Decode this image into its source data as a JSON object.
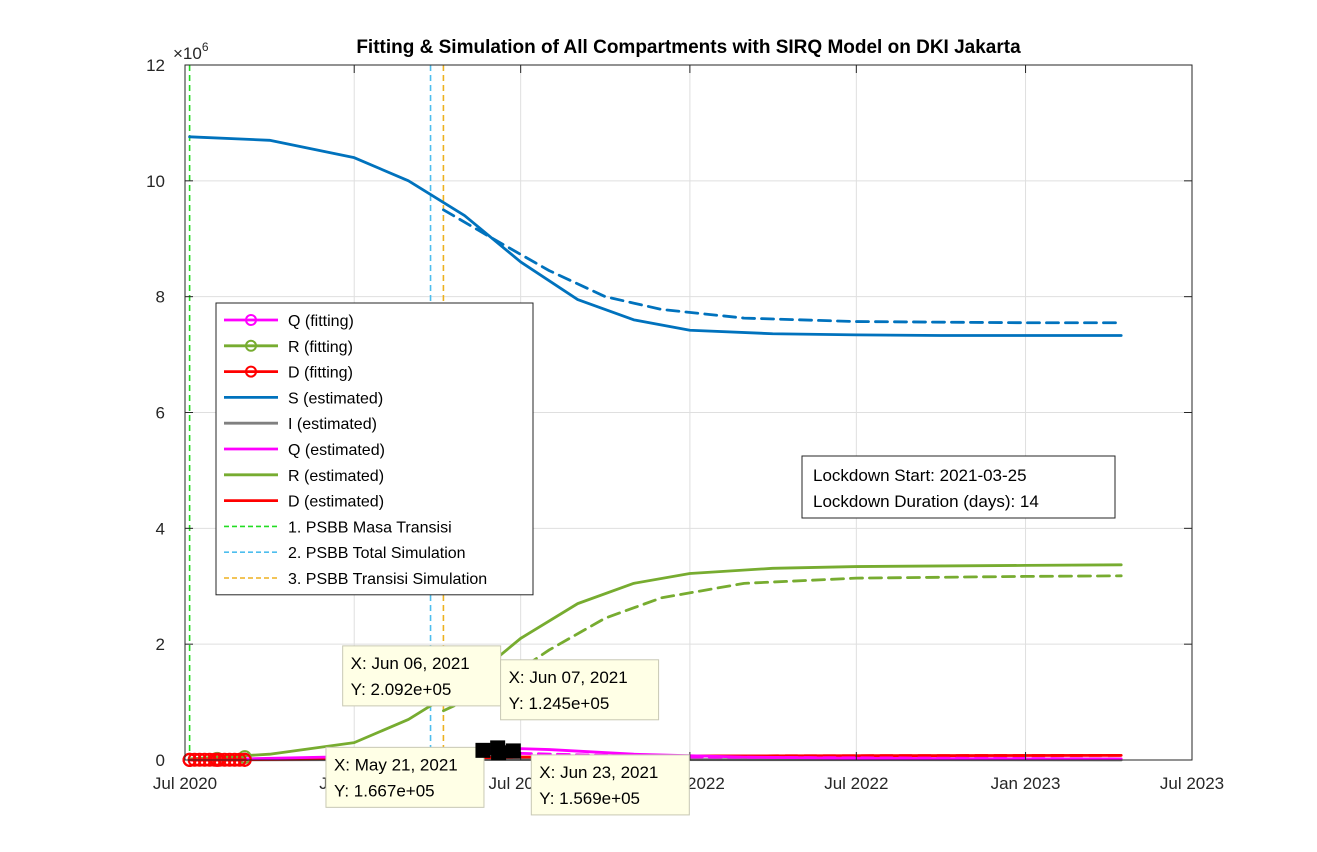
{
  "chart_data": {
    "type": "line",
    "title": "Fitting & Simulation of All Compartments with SIRQ Model on DKI Jakarta",
    "xlabel": "",
    "ylabel": "",
    "x_range": [
      "2020-07-01",
      "2023-07-01"
    ],
    "x_ticks": [
      "Jul 2020",
      "Jan 2021",
      "Jul 2021",
      "Jan 2022",
      "Jul 2022",
      "Jan 2023",
      "Jul 2023"
    ],
    "x_tick_dates": [
      "2020-07-01",
      "2021-01-01",
      "2021-07-01",
      "2022-01-01",
      "2022-07-01",
      "2023-01-01",
      "2023-07-01"
    ],
    "y_range": [
      0,
      12
    ],
    "y_ticks": [
      "0",
      "2",
      "4",
      "6",
      "8",
      "10",
      "12"
    ],
    "y_exponent": "×10",
    "y_exponent_power": "6",
    "grid": true,
    "legend_position": "left",
    "series": [
      {
        "name": "Q (fitting)",
        "color": "#FF00FF",
        "style": "solid-marker",
        "x": [
          "2020-07-06",
          "2020-08-05",
          "2020-09-04"
        ],
        "y": [
          0.002,
          0.004,
          0.005
        ]
      },
      {
        "name": "R (fitting)",
        "color": "#77AC30",
        "style": "solid-marker",
        "x": [
          "2020-07-06",
          "2020-08-05",
          "2020-09-04"
        ],
        "y": [
          0.005,
          0.02,
          0.05
        ]
      },
      {
        "name": "D (fitting)",
        "color": "#FF0000",
        "style": "solid-marker",
        "x": [
          "2020-07-06",
          "2020-08-05",
          "2020-09-04"
        ],
        "y": [
          0.0,
          0.002,
          0.003
        ]
      },
      {
        "name": "S (estimated)",
        "color": "#0072BD",
        "style": "solid",
        "x": [
          "2020-07-06",
          "2020-10-01",
          "2021-01-01",
          "2021-03-01",
          "2021-05-01",
          "2021-07-01",
          "2021-09-01",
          "2021-11-01",
          "2022-01-01",
          "2022-04-01",
          "2022-07-01",
          "2022-10-01",
          "2023-01-01",
          "2023-04-15"
        ],
        "y": [
          10.76,
          10.7,
          10.4,
          10.0,
          9.4,
          8.6,
          7.95,
          7.6,
          7.42,
          7.36,
          7.34,
          7.33,
          7.33,
          7.33
        ]
      },
      {
        "name": "I (estimated)",
        "color": "#808080",
        "style": "solid",
        "x": [
          "2020-07-06",
          "2021-06-01",
          "2023-04-15"
        ],
        "y": [
          0.0,
          0.01,
          0.0
        ]
      },
      {
        "name": "Q (estimated)",
        "color": "#FF00FF",
        "style": "solid",
        "x": [
          "2020-07-06",
          "2021-01-01",
          "2021-04-01",
          "2021-06-06",
          "2021-08-01",
          "2021-11-01",
          "2022-03-01",
          "2022-07-01",
          "2023-01-01",
          "2023-04-15"
        ],
        "y": [
          0.0,
          0.06,
          0.15,
          0.209,
          0.18,
          0.1,
          0.05,
          0.03,
          0.02,
          0.02
        ]
      },
      {
        "name": "R (estimated)",
        "color": "#77AC30",
        "style": "solid",
        "x": [
          "2020-07-06",
          "2020-10-01",
          "2021-01-01",
          "2021-03-01",
          "2021-05-01",
          "2021-07-01",
          "2021-09-01",
          "2021-11-01",
          "2022-01-01",
          "2022-04-01",
          "2022-07-01",
          "2023-01-01",
          "2023-04-15"
        ],
        "y": [
          0.02,
          0.1,
          0.3,
          0.7,
          1.3,
          2.1,
          2.7,
          3.05,
          3.22,
          3.31,
          3.34,
          3.36,
          3.37
        ]
      },
      {
        "name": "D (estimated)",
        "color": "#FF0000",
        "style": "solid",
        "x": [
          "2020-07-06",
          "2021-01-01",
          "2021-07-01",
          "2022-01-01",
          "2023-04-15"
        ],
        "y": [
          0.0,
          0.02,
          0.05,
          0.07,
          0.08
        ]
      },
      {
        "name": "S (simulation)",
        "color": "#0072BD",
        "style": "dashed",
        "x": [
          "2021-04-08",
          "2021-06-01",
          "2021-08-01",
          "2021-10-01",
          "2021-12-01",
          "2022-03-01",
          "2022-07-01",
          "2023-01-01",
          "2023-04-15"
        ],
        "y": [
          9.5,
          9.0,
          8.45,
          8.0,
          7.78,
          7.63,
          7.57,
          7.55,
          7.55
        ]
      },
      {
        "name": "R (simulation)",
        "color": "#77AC30",
        "style": "dashed",
        "x": [
          "2021-04-08",
          "2021-06-01",
          "2021-08-01",
          "2021-10-01",
          "2021-12-01",
          "2022-03-01",
          "2022-07-01",
          "2023-01-01",
          "2023-04-15"
        ],
        "y": [
          0.85,
          1.25,
          1.9,
          2.45,
          2.8,
          3.05,
          3.14,
          3.17,
          3.18
        ]
      },
      {
        "name": "Q (simulation)",
        "color": "#FF00FF",
        "style": "dashed",
        "x": [
          "2021-04-08",
          "2021-06-07",
          "2021-09-01",
          "2022-01-01",
          "2023-04-15"
        ],
        "y": [
          0.16,
          0.125,
          0.09,
          0.05,
          0.02
        ]
      },
      {
        "name": "D (simulation)",
        "color": "#FF0000",
        "style": "dashed",
        "x": [
          "2021-04-08",
          "2022-01-01",
          "2023-04-15"
        ],
        "y": [
          0.04,
          0.07,
          0.08
        ]
      }
    ],
    "vlines": [
      {
        "name": "1. PSBB Masa Transisi",
        "color": "#22DD22",
        "x": "2020-07-06"
      },
      {
        "name": "2. PSBB Total Simulation",
        "color": "#4DBEEE",
        "x": "2021-03-25"
      },
      {
        "name": "3. PSBB Transisi Simulation",
        "color": "#EDB120",
        "x": "2021-04-08"
      }
    ],
    "legend": [
      {
        "label": "Q (fitting)",
        "color": "#FF00FF",
        "style": "marker"
      },
      {
        "label": "R (fitting)",
        "color": "#77AC30",
        "style": "marker"
      },
      {
        "label": "D (fitting)",
        "color": "#FF0000",
        "style": "marker"
      },
      {
        "label": "S (estimated)",
        "color": "#0072BD",
        "style": "solid"
      },
      {
        "label": "I (estimated)",
        "color": "#808080",
        "style": "solid"
      },
      {
        "label": "Q (estimated)",
        "color": "#FF00FF",
        "style": "solid"
      },
      {
        "label": "R (estimated)",
        "color": "#77AC30",
        "style": "solid"
      },
      {
        "label": "D (estimated)",
        "color": "#FF0000",
        "style": "solid"
      },
      {
        "label": "1. PSBB Masa Transisi",
        "color": "#22DD22",
        "style": "dashed"
      },
      {
        "label": "2. PSBB Total Simulation",
        "color": "#4DBEEE",
        "style": "dashed"
      },
      {
        "label": "3. PSBB Transisi Simulation",
        "color": "#EDB120",
        "style": "dashed"
      }
    ],
    "annotation_box": [
      "Lockdown Start: 2021-03-25",
      "Lockdown Duration (days): 14"
    ],
    "datatips": [
      {
        "x_label": "X: Jun 06, 2021",
        "y_label": "Y: 2.092e+05",
        "x": "2021-06-06",
        "y": 0.2092,
        "placement": "above-left"
      },
      {
        "x_label": "X: Jun 07, 2021",
        "y_label": "Y: 1.245e+05",
        "x": "2021-06-07",
        "y": 0.1245,
        "placement": "above-right"
      },
      {
        "x_label": "X: May 21, 2021",
        "y_label": "Y: 1.667e+05",
        "x": "2021-05-21",
        "y": 0.1667,
        "placement": "below-left"
      },
      {
        "x_label": "X: Jun 23, 2021",
        "y_label": "Y: 1.569e+05",
        "x": "2021-06-23",
        "y": 0.1569,
        "placement": "below-right"
      }
    ]
  }
}
